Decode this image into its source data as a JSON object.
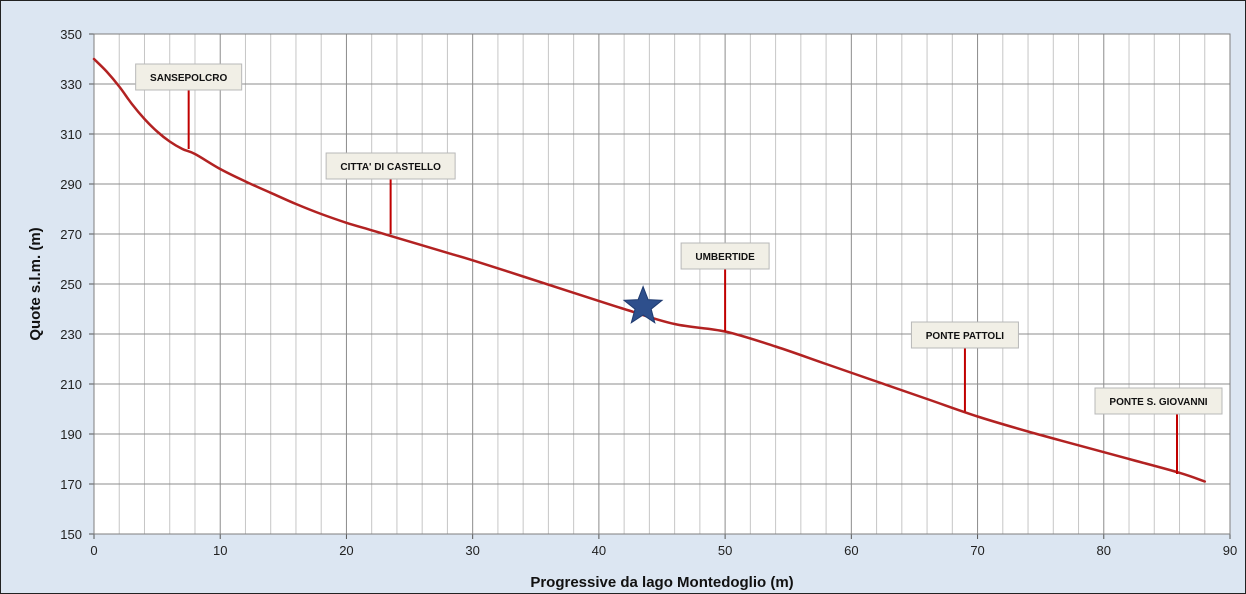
{
  "chart_data": {
    "type": "line",
    "title": "",
    "xlabel": "Progressive da lago Montedoglio (m)",
    "ylabel": "Quote s.l.m. (m)",
    "xlim": [
      0,
      90
    ],
    "ylim": [
      150,
      350
    ],
    "x_ticks": [
      0,
      10,
      20,
      30,
      40,
      50,
      60,
      70,
      80,
      90
    ],
    "y_ticks": [
      150,
      170,
      190,
      210,
      230,
      250,
      270,
      290,
      310,
      330,
      350
    ],
    "x_minor_step": 2,
    "grid": true,
    "legend": "none",
    "series": [
      {
        "line_color": "#b22222",
        "x": [
          0,
          1,
          2,
          3,
          4,
          5,
          6,
          7,
          8,
          10,
          12,
          14,
          16,
          18,
          20,
          22,
          24,
          26,
          28,
          30,
          34,
          38,
          42,
          46,
          50,
          54,
          58,
          62,
          66,
          70,
          74,
          78,
          82,
          86,
          88
        ],
        "y": [
          340,
          335,
          329,
          322,
          316,
          311,
          307,
          304,
          302,
          296,
          291,
          286.5,
          282,
          278,
          274.5,
          271.5,
          268.5,
          265.5,
          262.5,
          259.5,
          253,
          246.5,
          240,
          234,
          231,
          225,
          218,
          211,
          204,
          197,
          191,
          185.5,
          180,
          174.5,
          171
        ]
      }
    ],
    "annotations": [
      {
        "label": "SANSEPOLCRO",
        "x": 7.5,
        "y": 304
      },
      {
        "label": "CITTA' DI CASTELLO",
        "x": 23.5,
        "y": 270
      },
      {
        "label": "UMBERTIDE",
        "x": 50,
        "y": 231
      },
      {
        "label": "PONTE PATTOLI",
        "x": 69,
        "y": 199
      },
      {
        "label": "PONTE S. GIOVANNI",
        "x": 85.8,
        "y": 174
      }
    ],
    "marker": {
      "shape": "star",
      "x": 43.5,
      "y": 241,
      "color": "#2e4f8c"
    }
  }
}
